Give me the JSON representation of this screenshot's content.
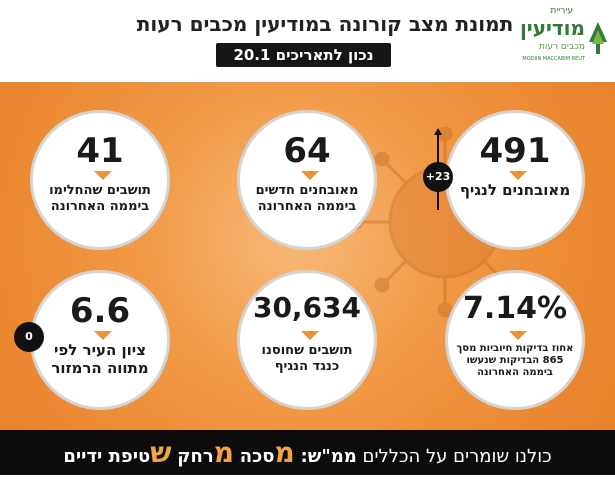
{
  "header": {
    "title": "תמונת מצב קורונה במודיעין מכבים רעות",
    "date": "נכון לתאריכים 20.1",
    "logo": {
      "top_text": "עיריית",
      "main_text": "מודיעין",
      "sub_text": "מכבים רעות",
      "en_text": "MODIIN MACCABIM REUT"
    }
  },
  "stats": [
    {
      "value": "491",
      "label": "מאובחנים לנגיף",
      "badge": "+23"
    },
    {
      "value": "64",
      "label": "מאובחנים חדשים ביממה האחרונה"
    },
    {
      "value": "41",
      "label": "תושבים שהחלימו ביממה האחרונה"
    },
    {
      "value": "7.14%",
      "label": "אחוז בדיקות חיוביות מסך 865 הבדיקות שנעשו ביממה האחרונה"
    },
    {
      "value": "30,634",
      "label": "תושבים שחוסנו כנגד הנגיף"
    },
    {
      "value": "6.6",
      "label": "ציון העיר לפי מתווה הרמזור",
      "badge": "0"
    }
  ],
  "footer": {
    "intro": "כולנו שומרים על הכללים",
    "mmsh": "ממ\"ש:",
    "items": [
      {
        "letter": "מ",
        "rest": "סכה"
      },
      {
        "letter": "מ",
        "rest": "רחק"
      },
      {
        "letter": "ש",
        "rest": "טיפת ידיים"
      }
    ]
  },
  "colors": {
    "background_orange": "#ec8a33",
    "accent": "#f0a245",
    "dark": "#0c0c0c",
    "logo_green": "#2f7d34"
  }
}
